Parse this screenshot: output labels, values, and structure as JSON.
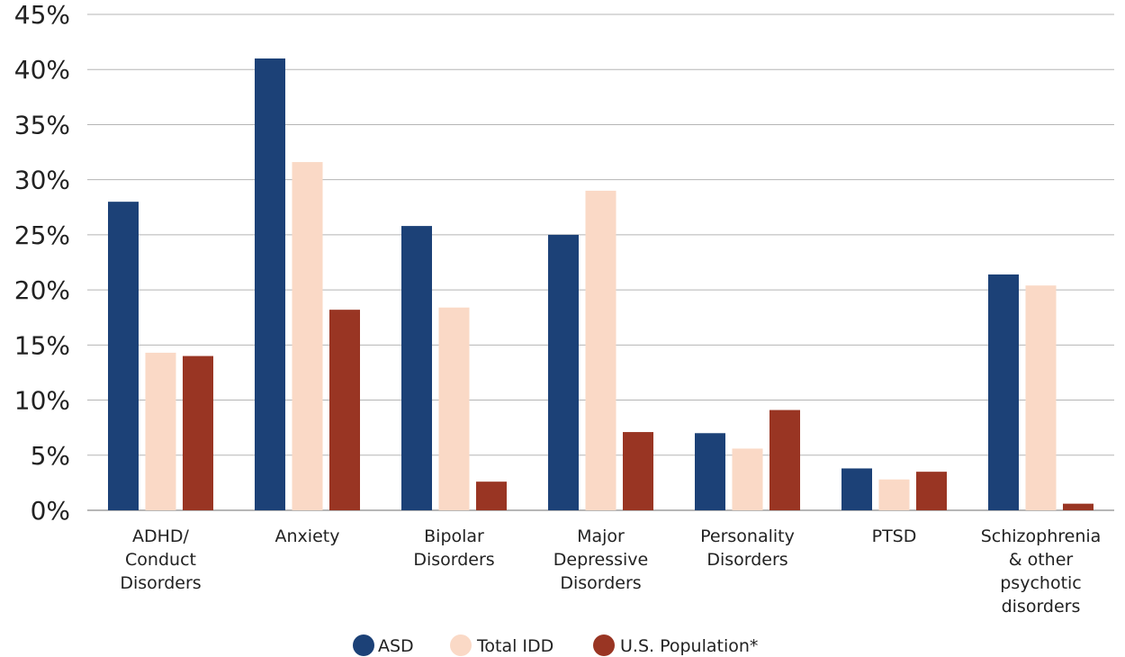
{
  "chart_data": {
    "type": "bar",
    "categories": [
      [
        "ADHD/",
        "Conduct",
        "Disorders"
      ],
      [
        "Anxiety"
      ],
      [
        "Bipolar",
        "Disorders"
      ],
      [
        "Major",
        "Depressive",
        "Disorders"
      ],
      [
        "Personality",
        "Disorders"
      ],
      [
        "PTSD"
      ],
      [
        "Schizophrenia",
        "& other",
        "psychotic",
        "disorders"
      ]
    ],
    "series": [
      {
        "name": "ASD",
        "color": "#1c4177",
        "values": [
          28,
          41,
          25.8,
          25,
          7,
          3.8,
          21.4
        ]
      },
      {
        "name": "Total IDD",
        "color": "#fad9c6",
        "values": [
          14.3,
          31.6,
          18.4,
          29,
          5.6,
          2.8,
          20.4
        ]
      },
      {
        "name": "U.S. Population*",
        "color": "#993523",
        "values": [
          14,
          18.2,
          2.6,
          7.1,
          9.1,
          3.5,
          0.6
        ]
      }
    ],
    "yticks": [
      "0%",
      "5%",
      "10%",
      "15%",
      "20%",
      "25%",
      "30%",
      "35%",
      "40%",
      "45%"
    ],
    "ylim": [
      0,
      45
    ],
    "grid": true,
    "legend_position": "bottom-center"
  }
}
